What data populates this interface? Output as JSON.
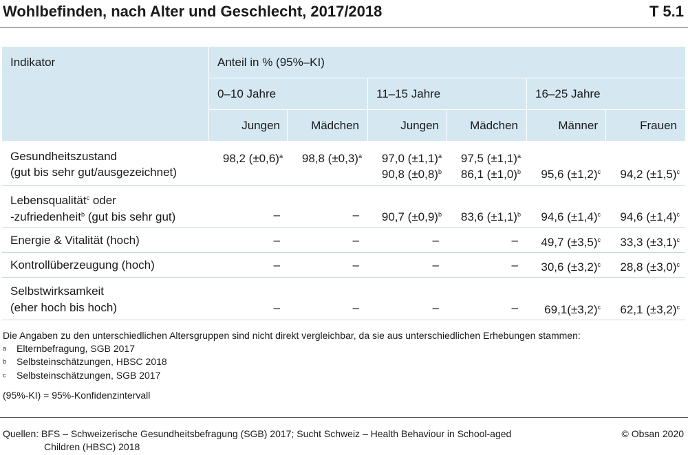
{
  "header": {
    "title": "Wohlbefinden, nach Alter und Geschlecht, 2017/2018",
    "table_id": "T 5.1"
  },
  "table": {
    "indicator_label": "Indikator",
    "share_label": "Anteil in % (95%–KI)",
    "age_groups": [
      "0–10 Jahre",
      "11–15 Jahre",
      "16–25 Jahre"
    ],
    "sexes": [
      "Jungen",
      "Mädchen",
      "Jungen",
      "Mädchen",
      "Männer",
      "Frauen"
    ],
    "rows": [
      {
        "label_1": "Gesundheitszustand",
        "label_2": "(gut bis sehr gut/ausgezeichnet)",
        "cells": [
          "98,2 (±0,6)",
          "98,8 (±0,3)",
          "97,0 (±1,1)",
          "97,5 (±1,1)",
          "95,6 (±1,2)",
          "94,2 (±1,5)"
        ],
        "sups": [
          "a",
          "a",
          "a",
          "a",
          "c",
          "c"
        ],
        "cells_2": [
          "90,8 (±0,8)",
          "86,1 (±1,0)"
        ],
        "sups_2": [
          "b",
          "b"
        ]
      },
      {
        "label_1": "Lebensqualität",
        "label_1_sup": "c",
        "label_1_rest": " oder",
        "label_2": "-zufriedenheit",
        "label_2_sup": "b",
        "label_2_rest": " (gut bis sehr gut)",
        "cells": [
          "–",
          "–",
          "90,7 (±0,9)",
          "83,6 (±1,1)",
          "94,6 (±1,4)",
          "94,6 (±1,4)"
        ],
        "sups": [
          "",
          "",
          "b",
          "b",
          "c",
          "c"
        ]
      },
      {
        "label_1": "Energie & Vitalität (hoch)",
        "cells": [
          "–",
          "–",
          "–",
          "–",
          "49,7 (±3,5)",
          "33,3 (±3,1)"
        ],
        "sups": [
          "",
          "",
          "",
          "",
          "c",
          "c"
        ]
      },
      {
        "label_1": "Kontrollüberzeugung (hoch)",
        "cells": [
          "–",
          "–",
          "–",
          "–",
          "30,6 (±3,2)",
          "28,8 (±3,0)"
        ],
        "sups": [
          "",
          "",
          "",
          "",
          "c",
          "c"
        ]
      },
      {
        "label_1": "Selbstwirksamkeit",
        "label_2": "(eher hoch bis hoch)",
        "cells": [
          "–",
          "–",
          "–",
          "–",
          "69,1(±3,2)",
          "62,1 (±3,2)"
        ],
        "sups": [
          "",
          "",
          "",
          "",
          "c",
          "c"
        ]
      }
    ]
  },
  "notes": {
    "comparability": "Die Angaben zu den unterschiedlichen Altersgruppen sind nicht direkt vergleichbar, da sie aus unterschiedlichen Erhebungen stammen:",
    "footnotes": [
      {
        "mark": "a",
        "text": "Elternbefragung, SGB 2017"
      },
      {
        "mark": "b",
        "text": "Selbsteinschätzungen, HBSC 2018"
      },
      {
        "mark": "c",
        "text": "Selbsteinschätzungen, SGB 2017"
      }
    ],
    "ci_definition": "(95%-KI) = 95%-Konfidenzintervall"
  },
  "footer": {
    "sources_line_1": "Quellen: BFS – Schweizerische Gesundheitsbefragung (SGB) 2017; Sucht Schweiz – Health Behaviour in School-aged",
    "sources_line_2": "Children (HBSC) 2018",
    "copyright": "© Obsan 2020"
  }
}
